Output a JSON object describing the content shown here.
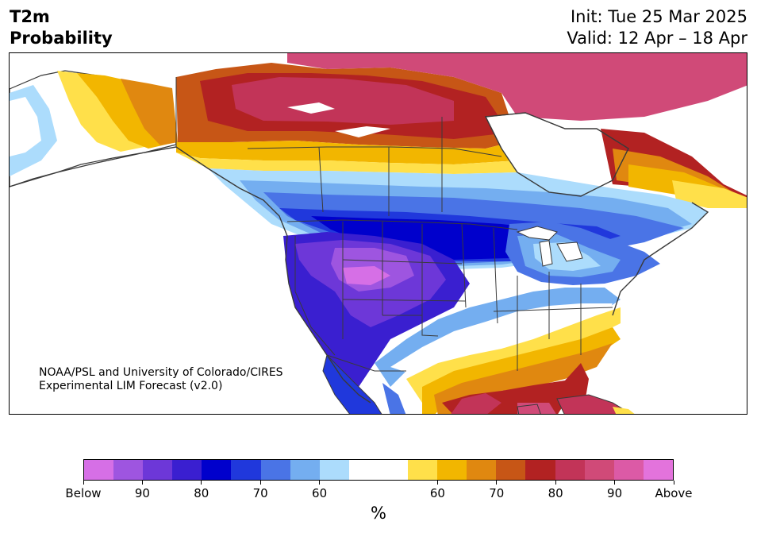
{
  "title": {
    "line1": "T2m",
    "line2": "Probability"
  },
  "init_label": "Init: Tue 25 Mar 2025",
  "valid_label": "Valid: 12 Apr – 18 Apr",
  "credit": {
    "line1": "NOAA/PSL and University of Colorado/CIRES",
    "line2": "Experimental LIM Forecast (v2.0)"
  },
  "colorbar": {
    "colors": [
      "#d66fe6",
      "#9e55e0",
      "#6d37d8",
      "#3a1fd0",
      "#0000cc",
      "#2038dc",
      "#4a74e6",
      "#74aef0",
      "#acdcfc",
      "#ffffff",
      "#ffffff",
      "#ffe04a",
      "#f2b600",
      "#e08810",
      "#c75616",
      "#b22222",
      "#c23458",
      "#d04a78",
      "#dc5aa6",
      "#e373dc"
    ],
    "labels": [
      "Below",
      "90",
      "80",
      "70",
      "60",
      "60",
      "70",
      "80",
      "90",
      "Above"
    ],
    "unit": "%"
  },
  "legend_colors": {
    "below_strong": "#6d37d8",
    "below_mid": "#0000cc",
    "below_weak": "#acdcfc",
    "near_normal": "#ffffff",
    "above_weak": "#ffe04a",
    "above_mid": "#c75616",
    "above_strong": "#d04a78",
    "land_outline": "#3a3a3a"
  }
}
